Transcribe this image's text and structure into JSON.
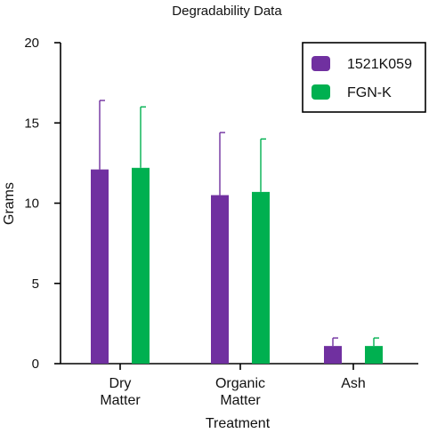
{
  "chart_data": {
    "type": "bar",
    "title": "Degradability Data",
    "xlabel": "Treatment",
    "ylabel": "Grams",
    "ylim": [
      0,
      20
    ],
    "yticks": [
      0,
      5,
      10,
      15,
      20
    ],
    "categories": [
      [
        "Dry",
        "Matter"
      ],
      [
        "Organic",
        "Matter"
      ],
      [
        "Ash"
      ]
    ],
    "series": [
      {
        "name": "1521K059",
        "color": "#7030A0",
        "values": [
          12.1,
          10.5,
          1.1
        ],
        "errors": [
          4.3,
          3.9,
          0.5
        ]
      },
      {
        "name": "FGN-K",
        "color": "#00B050",
        "values": [
          12.2,
          10.7,
          1.1
        ],
        "errors": [
          3.8,
          3.3,
          0.5
        ]
      }
    ],
    "legend_position": "top-right",
    "grid": false
  }
}
